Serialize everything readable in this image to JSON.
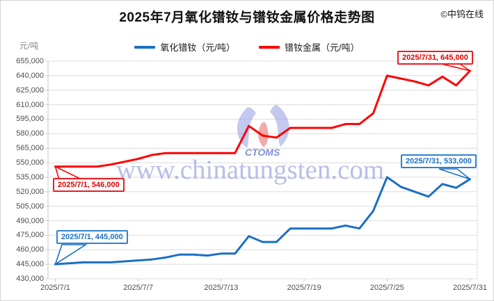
{
  "title": "2025年7月氧化镨钕与镨钕金属价格走势图",
  "copyright": "©中钨在线",
  "y_axis": {
    "unit": "元/吨",
    "ticks": [
      "655,000",
      "640,000",
      "625,000",
      "610,000",
      "595,000",
      "580,000",
      "565,000",
      "550,000",
      "535,000",
      "520,000",
      "505,000",
      "490,000",
      "475,000",
      "460,000",
      "445,000",
      "430,000"
    ]
  },
  "x_axis": {
    "ticks": [
      {
        "label": "2025/7/1",
        "day": 1
      },
      {
        "label": "2025/7/7",
        "day": 7
      },
      {
        "label": "2025/7/13",
        "day": 13
      },
      {
        "label": "2025/7/19",
        "day": 19
      },
      {
        "label": "2025/7/25",
        "day": 25
      },
      {
        "label": "2025/7/31",
        "day": 31
      }
    ]
  },
  "watermark": {
    "text": "www.chinatungsten.com",
    "logo_text": "CTOMS"
  },
  "chart_data": {
    "type": "line",
    "title": "2025年7月氧化镨钕与镨钕金属价格走势图",
    "ylabel": "元/吨",
    "ylim": [
      430000,
      655000
    ],
    "ytick_step": 15000,
    "grid": true,
    "legend_position": "top",
    "x": [
      "2025/7/1",
      "2025/7/2",
      "2025/7/3",
      "2025/7/4",
      "2025/7/5",
      "2025/7/6",
      "2025/7/7",
      "2025/7/8",
      "2025/7/9",
      "2025/7/10",
      "2025/7/11",
      "2025/7/12",
      "2025/7/13",
      "2025/7/14",
      "2025/7/15",
      "2025/7/16",
      "2025/7/17",
      "2025/7/18",
      "2025/7/19",
      "2025/7/20",
      "2025/7/21",
      "2025/7/22",
      "2025/7/23",
      "2025/7/24",
      "2025/7/25",
      "2025/7/26",
      "2025/7/27",
      "2025/7/28",
      "2025/7/29",
      "2025/7/30",
      "2025/7/31"
    ],
    "series": [
      {
        "name": "氧化镨钕（元/吨）",
        "color": "#1a6fc4",
        "values": [
          445000,
          446000,
          447000,
          447000,
          447000,
          448000,
          449000,
          450000,
          452000,
          455000,
          455000,
          454000,
          456000,
          456000,
          474000,
          468000,
          468000,
          482000,
          482000,
          482000,
          482000,
          485000,
          482000,
          500000,
          535000,
          525000,
          520000,
          515000,
          528000,
          524000,
          533000
        ]
      },
      {
        "name": "镨钕金属（元/吨）",
        "color": "#fe0000",
        "values": [
          546000,
          546000,
          546000,
          546000,
          548000,
          551000,
          554000,
          558000,
          560000,
          560000,
          560000,
          560000,
          560000,
          560000,
          588000,
          578000,
          576000,
          586000,
          586000,
          586000,
          586000,
          590000,
          590000,
          601000,
          640000,
          637000,
          634000,
          630000,
          639000,
          630000,
          645000
        ]
      }
    ],
    "annotations": [
      {
        "text": "2025/7/1, 546,000",
        "series": 1,
        "day": 1,
        "value": 546000
      },
      {
        "text": "2025/7/1, 445,000",
        "series": 0,
        "day": 1,
        "value": 445000
      },
      {
        "text": "2025/7/31, 645,000",
        "series": 1,
        "day": 31,
        "value": 645000
      },
      {
        "text": "2025/7/31, 533,000",
        "series": 0,
        "day": 31,
        "value": 533000
      }
    ]
  }
}
